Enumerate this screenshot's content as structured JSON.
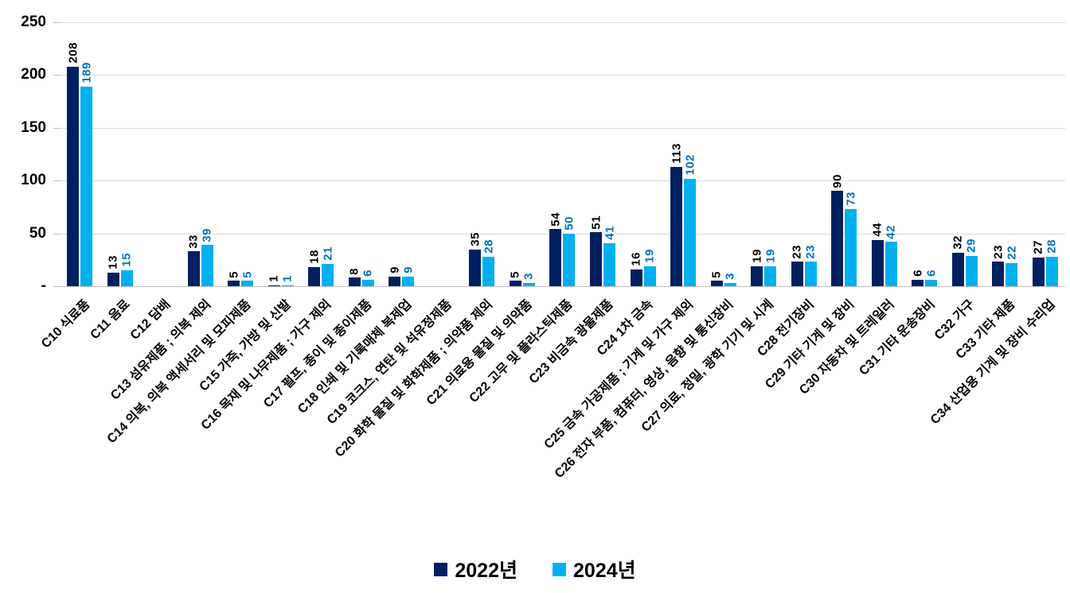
{
  "chart_data": {
    "type": "bar",
    "title": "",
    "categories": [
      "C10 식료품",
      "C11 음료",
      "C12 담배",
      "C13 섬유제품 ; 의복 제외",
      "C14 의복, 의복 액세서리 및 모피제품",
      "C15 가죽, 가방 및 신발",
      "C16 목재 및 나무제품 ; 가구 제외",
      "C17 펄프, 종이 및 종이제품",
      "C18 인쇄 및 기록매체 복제업",
      "C19 코크스, 연탄 및 석유정제품",
      "C20 화학 물질 및 화학제품 ; 의약품 제외",
      "C21 의료용 물질 및 의약품",
      "C22 고무 및 플라스틱제품",
      "C23 비금속 광물제품",
      "C24 1차 금속",
      "C25 금속 가공제품 ; 기계 및 가구 제외",
      "C26 전자 부품, 컴퓨터, 영상, 음향 및 통신장비",
      "C27 의료, 정밀, 광학 기기 및 시계",
      "C28 전기장비",
      "C29 기타 기계 및 장비",
      "C30 자동차 및 트레일러",
      "C31 기타 운송장비",
      "C32 가구",
      "C33 기타 제품",
      "C34 산업용 기계 및 장비 수리업"
    ],
    "series": [
      {
        "name": "2022년",
        "color": "#002060",
        "label_color": "#000000",
        "values": [
          208,
          13,
          null,
          33,
          5,
          1,
          18,
          8,
          9,
          null,
          35,
          5,
          54,
          51,
          16,
          113,
          5,
          19,
          23,
          90,
          44,
          6,
          32,
          23,
          27
        ]
      },
      {
        "name": "2024년",
        "color": "#00b0f0",
        "label_color": "#0070c0",
        "values": [
          189,
          15,
          null,
          39,
          5,
          1,
          21,
          6,
          9,
          null,
          28,
          3,
          50,
          41,
          19,
          102,
          3,
          19,
          23,
          73,
          42,
          6,
          29,
          22,
          28
        ]
      }
    ],
    "y_axis": {
      "min": 0,
      "max": 250,
      "tick_interval": 50,
      "tick_labels": [
        "-",
        "50",
        "100",
        "150",
        "200",
        "250"
      ],
      "zero_label": "-"
    },
    "grid": true,
    "legend_position": "bottom",
    "value_labels_rotation": "vertical",
    "category_labels_rotation_deg": 45
  }
}
